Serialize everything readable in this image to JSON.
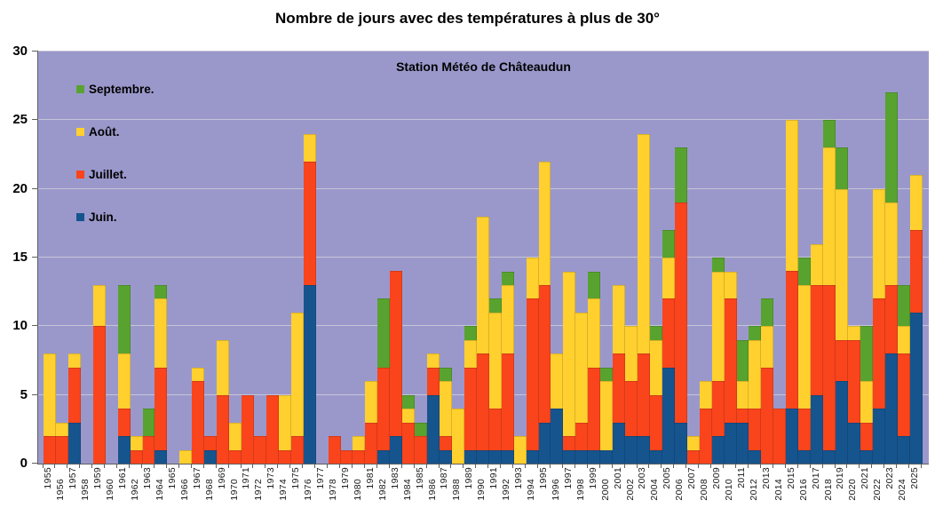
{
  "title": "Nombre de jours avec des températures à plus de 30°",
  "subtitle": "Station Météo de Châteaudun",
  "colors": {
    "juin": "#16548e",
    "juillet": "#f9441c",
    "aout": "#ffd02e",
    "septembre": "#58a32f",
    "plot_background": "#9a98cb",
    "gridline": "#c7c5d6",
    "axis": "#5f5f5f",
    "text": "#000000"
  },
  "legend": [
    {
      "label": "Septembre.",
      "color": "#58a32f"
    },
    {
      "label": "Août.",
      "color": "#ffd02e"
    },
    {
      "label": "Juillet.",
      "color": "#f9441c"
    },
    {
      "label": "Juin.",
      "color": "#16548e"
    }
  ],
  "y_axis": {
    "ticks": [
      0,
      5,
      10,
      15,
      20,
      25,
      30
    ],
    "max": 30
  },
  "chart_data": {
    "type": "bar",
    "stacked": true,
    "title": "Nombre de jours avec des températures à plus de 30°",
    "subtitle": "Station Météo de Châteaudun",
    "xlabel": "",
    "ylabel": "",
    "ylim": [
      0,
      30
    ],
    "grid": true,
    "legend_position": "inside-top-left",
    "x_tick_rotation": 90,
    "categories": [
      "1955",
      "1956",
      "1957",
      "1958",
      "1959",
      "1960",
      "1961",
      "1962",
      "1963",
      "1964",
      "1965",
      "1966",
      "1967",
      "1968",
      "1969",
      "1970",
      "1971",
      "1972",
      "1973",
      "1974",
      "1975",
      "1976",
      "1977",
      "1978",
      "1979",
      "1980",
      "1981",
      "1982",
      "1983",
      "1984",
      "1985",
      "1986",
      "1987",
      "1988",
      "1989",
      "1990",
      "1991",
      "1992",
      "1993",
      "1994",
      "1995",
      "1996",
      "1997",
      "1998",
      "1999",
      "2000",
      "2001",
      "2002",
      "2003",
      "2004",
      "2005",
      "2006",
      "2007",
      "2008",
      "2009",
      "2010",
      "2011",
      "2012",
      "2013",
      "2014",
      "2015",
      "2016",
      "2017",
      "2018",
      "2019",
      "2020",
      "2021",
      "2022",
      "2023",
      "2024",
      "2025"
    ],
    "series": [
      {
        "name": "Juin.",
        "color": "#16548e",
        "values": [
          0,
          0,
          3,
          0,
          0,
          0,
          2,
          0,
          0,
          1,
          0,
          0,
          0,
          1,
          0,
          0,
          0,
          0,
          0,
          0,
          0,
          13,
          0,
          0,
          0,
          0,
          0,
          1,
          2,
          0,
          0,
          5,
          1,
          0,
          1,
          1,
          1,
          1,
          0,
          1,
          3,
          4,
          1,
          1,
          1,
          1,
          3,
          2,
          2,
          1,
          7,
          3,
          0,
          0,
          2,
          3,
          3,
          1,
          0,
          0,
          4,
          1,
          5,
          1,
          6,
          3,
          1,
          4,
          8,
          2,
          11
        ]
      },
      {
        "name": "Juillet.",
        "color": "#f9441c",
        "values": [
          2,
          2,
          4,
          0,
          10,
          0,
          2,
          1,
          2,
          6,
          0,
          0,
          6,
          1,
          5,
          1,
          5,
          2,
          5,
          1,
          2,
          9,
          0,
          2,
          1,
          1,
          3,
          6,
          12,
          3,
          2,
          2,
          1,
          0,
          6,
          7,
          3,
          7,
          0,
          11,
          10,
          0,
          1,
          2,
          6,
          0,
          5,
          4,
          6,
          4,
          5,
          16,
          1,
          4,
          4,
          9,
          1,
          3,
          7,
          4,
          10,
          3,
          8,
          12,
          3,
          6,
          2,
          8,
          5,
          6,
          6
        ]
      },
      {
        "name": "Août.",
        "color": "#ffd02e",
        "values": [
          6,
          1,
          1,
          0,
          3,
          0,
          4,
          1,
          0,
          5,
          0,
          1,
          1,
          0,
          4,
          2,
          0,
          0,
          0,
          4,
          9,
          2,
          0,
          0,
          0,
          1,
          3,
          0,
          0,
          1,
          0,
          1,
          4,
          4,
          2,
          10,
          7,
          5,
          2,
          3,
          9,
          4,
          12,
          8,
          5,
          5,
          5,
          4,
          16,
          4,
          3,
          0,
          1,
          2,
          8,
          2,
          2,
          5,
          3,
          0,
          11,
          9,
          3,
          10,
          11,
          1,
          3,
          8,
          6,
          2,
          4
        ]
      },
      {
        "name": "Septembre.",
        "color": "#58a32f",
        "values": [
          0,
          0,
          0,
          0,
          0,
          0,
          5,
          0,
          2,
          1,
          0,
          0,
          0,
          0,
          0,
          0,
          0,
          0,
          0,
          0,
          0,
          0,
          0,
          0,
          0,
          0,
          0,
          5,
          0,
          1,
          1,
          0,
          1,
          0,
          1,
          0,
          1,
          1,
          0,
          0,
          0,
          0,
          0,
          0,
          2,
          1,
          0,
          0,
          0,
          1,
          2,
          4,
          0,
          0,
          1,
          0,
          3,
          1,
          2,
          0,
          0,
          2,
          0,
          2,
          3,
          0,
          4,
          0,
          8,
          3,
          0
        ]
      }
    ]
  }
}
